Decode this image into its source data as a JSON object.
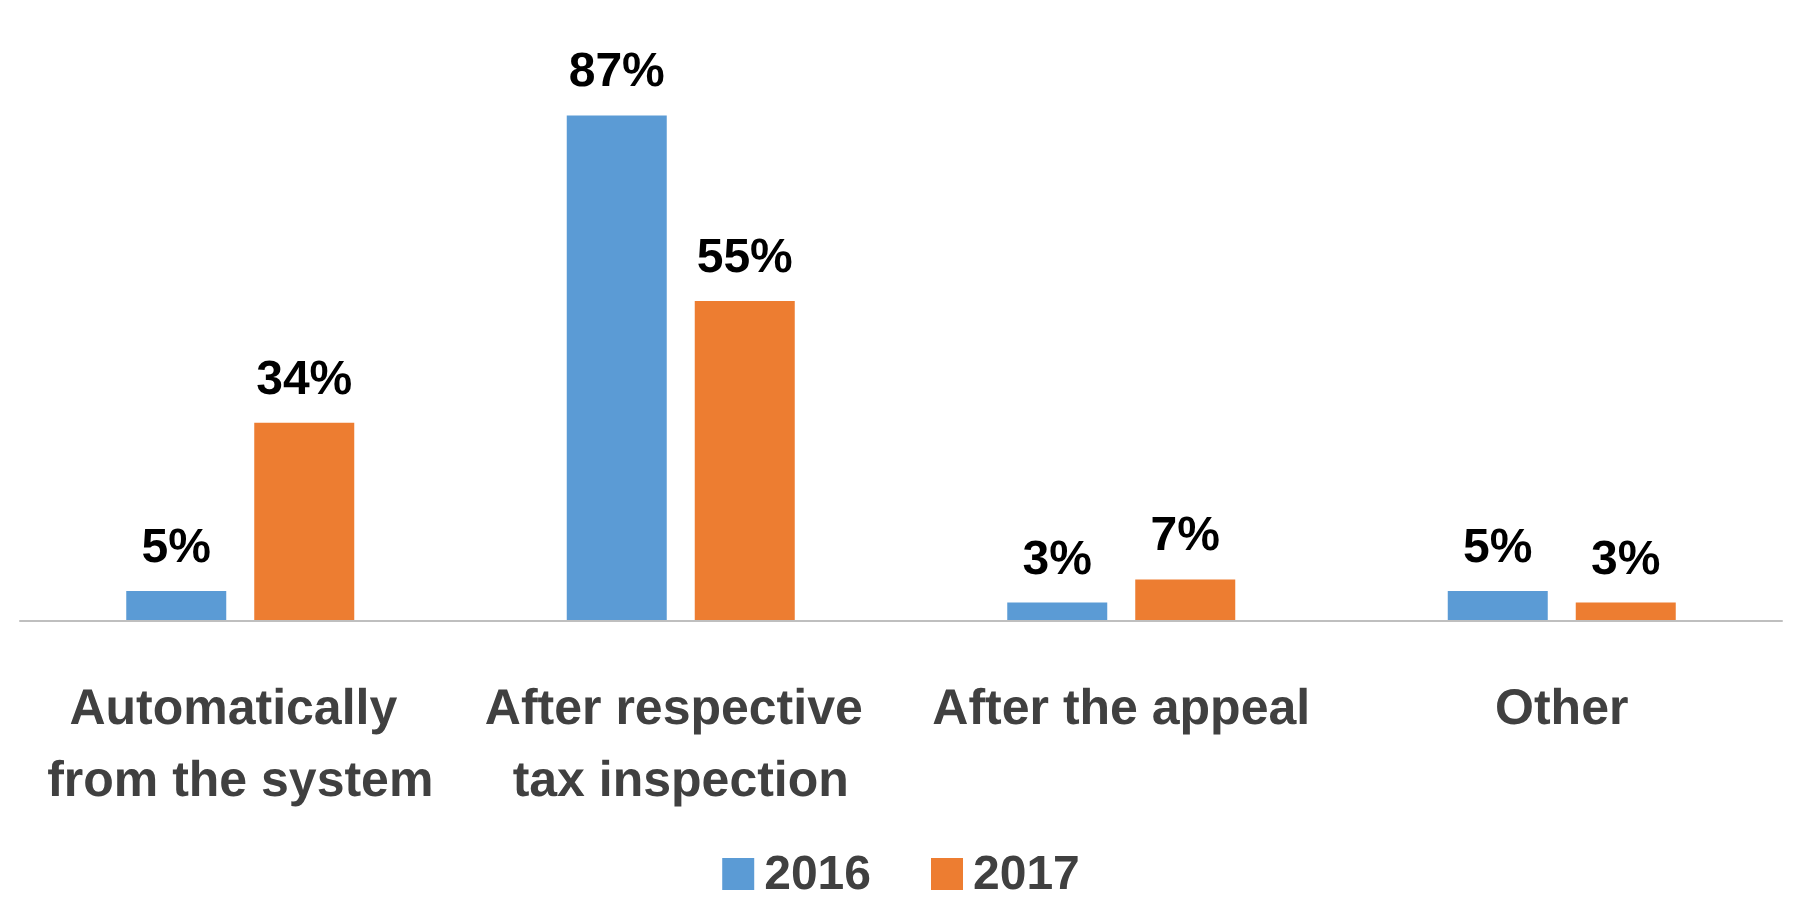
{
  "chart_data": {
    "type": "bar",
    "categories": [
      "Automatically from the system",
      "After respective tax inspection",
      "After the appeal",
      "Other"
    ],
    "series": [
      {
        "name": "2016",
        "color": "#5b9bd5",
        "values": [
          5,
          87,
          3,
          5
        ],
        "value_labels": [
          "5%",
          "87%",
          "3%",
          "5%"
        ]
      },
      {
        "name": "2017",
        "color": "#ed7d31",
        "values": [
          34,
          55,
          7,
          3
        ],
        "value_labels": [
          "34%",
          "55%",
          "7%",
          "3%"
        ]
      }
    ],
    "grid": false,
    "legend": "bottom"
  }
}
